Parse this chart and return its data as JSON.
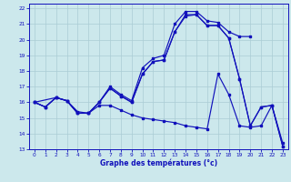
{
  "xlabel": "Graphe des températures (°c)",
  "xlim": [
    -0.5,
    23.5
  ],
  "ylim": [
    13,
    22.3
  ],
  "xticks": [
    0,
    1,
    2,
    3,
    4,
    5,
    6,
    7,
    8,
    9,
    10,
    11,
    12,
    13,
    14,
    15,
    16,
    17,
    18,
    19,
    20,
    21,
    22,
    23
  ],
  "yticks": [
    13,
    14,
    15,
    16,
    17,
    18,
    19,
    20,
    21,
    22
  ],
  "bg_color": "#cce8ec",
  "grid_color": "#aaccd4",
  "line_color": "#1111bb",
  "line1_x": [
    0,
    1,
    2,
    3,
    4,
    5,
    6,
    7,
    8,
    9,
    10,
    11,
    12,
    13,
    14,
    15,
    16,
    17,
    18,
    19,
    20
  ],
  "line1_y": [
    16.0,
    15.7,
    16.3,
    16.1,
    15.4,
    15.3,
    16.0,
    17.0,
    16.5,
    16.1,
    18.2,
    18.8,
    19.0,
    21.0,
    21.8,
    21.8,
    21.2,
    21.1,
    20.5,
    20.2,
    20.2
  ],
  "line2_x": [
    0,
    1,
    2,
    3,
    4,
    5,
    6,
    7,
    8,
    9,
    10,
    11,
    12,
    13,
    14,
    15,
    16,
    17,
    18,
    19,
    20,
    21,
    22,
    23
  ],
  "line2_y": [
    16.0,
    15.7,
    16.3,
    16.1,
    15.3,
    15.3,
    16.0,
    16.9,
    16.4,
    16.0,
    17.8,
    18.6,
    18.7,
    20.5,
    21.6,
    21.6,
    20.9,
    20.9,
    20.1,
    17.5,
    14.5,
    15.7,
    15.8,
    13.2
  ],
  "line3_x": [
    0,
    2,
    3,
    4,
    5,
    6,
    7,
    8,
    9,
    10,
    11,
    12,
    13,
    14,
    15,
    16,
    17,
    18,
    19,
    20,
    21,
    22,
    23
  ],
  "line3_y": [
    16.0,
    16.3,
    16.1,
    15.3,
    15.3,
    16.0,
    16.9,
    16.4,
    16.0,
    17.8,
    18.6,
    18.7,
    20.5,
    21.5,
    21.6,
    20.9,
    20.9,
    20.1,
    17.5,
    14.5,
    15.7,
    15.8,
    13.2
  ],
  "line4_x": [
    0,
    1,
    2,
    3,
    4,
    5,
    6,
    7,
    8,
    9,
    10,
    11,
    12,
    13,
    14,
    15,
    16,
    17,
    18,
    19,
    20,
    21,
    22,
    23
  ],
  "line4_y": [
    16.0,
    15.7,
    16.3,
    16.1,
    15.3,
    15.3,
    15.8,
    15.8,
    15.5,
    15.2,
    15.0,
    14.9,
    14.8,
    14.7,
    14.5,
    14.4,
    14.3,
    17.8,
    16.5,
    14.5,
    14.4,
    14.5,
    15.8,
    13.4
  ]
}
